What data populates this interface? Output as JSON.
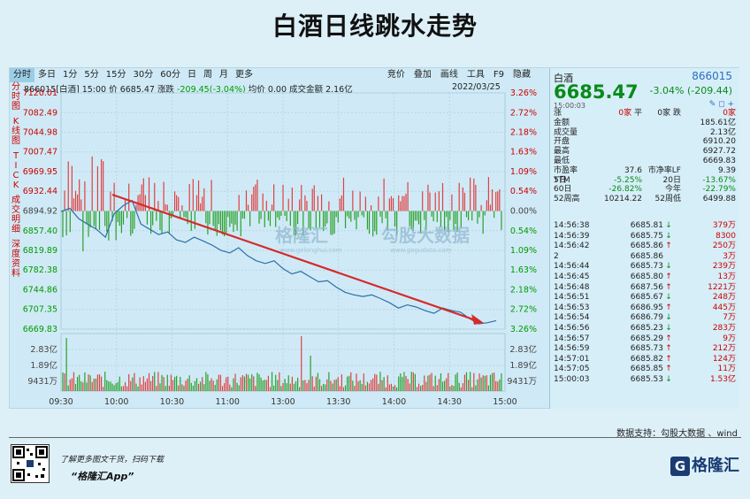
{
  "poster": {
    "title": "白酒日线跳水走势",
    "data_source": "数据支持：勾股大数据 、wind",
    "slogan": "了解更多图文干货，扫码下载",
    "app_name": "“格隆汇App”",
    "logo_text": "格隆汇"
  },
  "tabs": [
    "分时",
    "多日",
    "1分",
    "5分",
    "15分",
    "30分",
    "60分",
    "日",
    "周",
    "月",
    "更多"
  ],
  "tools": [
    "竞价",
    "叠加",
    "画线",
    "工具",
    "F9",
    "隐藏"
  ],
  "sidebar": [
    "分时图",
    "K线图",
    "TICK",
    "成交明细",
    "深度资料"
  ],
  "info": {
    "code_name": "866015[白酒]",
    "time": "15:00",
    "price_label": "价",
    "price": "6685.47",
    "chg_label": "涨跌",
    "chg": "-209.45(-3.04%)",
    "avg_label": "均价",
    "avg": "0.00",
    "amount_label": "成交金额",
    "amount": "2.16亿",
    "date": "2022/03/25"
  },
  "chart_data": {
    "type": "line",
    "base_price": 6894.92,
    "y_left_ticks": [
      "7120.01",
      "7082.49",
      "7044.98",
      "7007.47",
      "6969.95",
      "6932.44",
      "6894.92",
      "6857.40",
      "6819.89",
      "6782.38",
      "6744.86",
      "6707.35",
      "6669.83"
    ],
    "y_right_ticks": [
      "3.26%",
      "2.72%",
      "2.18%",
      "1.63%",
      "1.09%",
      "0.54%",
      "0.00%",
      "0.54%",
      "1.09%",
      "1.63%",
      "2.18%",
      "2.72%",
      "3.26%"
    ],
    "ylim": [
      6669.83,
      7120.01
    ],
    "vol_ticks": [
      "2.83亿",
      "1.89亿",
      "9431万"
    ],
    "x_ticks": [
      "09:30",
      "10:00",
      "10:30",
      "11:00",
      "13:00",
      "13:30",
      "14:00",
      "14:30",
      "15:00"
    ],
    "price_series": [
      6894,
      6900,
      6880,
      6870,
      6860,
      6845,
      6890,
      6905,
      6915,
      6870,
      6860,
      6850,
      6855,
      6840,
      6835,
      6845,
      6838,
      6830,
      6820,
      6815,
      6825,
      6810,
      6800,
      6795,
      6800,
      6785,
      6775,
      6780,
      6770,
      6760,
      6762,
      6750,
      6740,
      6735,
      6732,
      6735,
      6728,
      6720,
      6710,
      6716,
      6712,
      6705,
      6700,
      6710,
      6705,
      6702,
      6690,
      6680,
      6682,
      6686
    ]
  },
  "watermark": {
    "brand": "格隆汇",
    "brand_url": "www.gelonghui.com",
    "gogu": "勾股大数据",
    "gogu_url": "www.gogudata.com"
  },
  "quote": {
    "name": "白酒",
    "code": "866015",
    "price": "6685.47",
    "change": "-3.04% (-209.44)",
    "time": "15:00:03",
    "icons": "✎ ◻ +",
    "rows": [
      [
        "涨",
        "0家",
        "平",
        "0家",
        "跌",
        "0家"
      ],
      [
        "金额",
        "",
        "",
        "",
        "",
        "185.61亿"
      ],
      [
        "成交量",
        "",
        "",
        "",
        "",
        "2.13亿"
      ],
      [
        "开盘",
        "",
        "",
        "",
        "",
        "6910.20"
      ],
      [
        "最高",
        "",
        "",
        "",
        "",
        "6927.72"
      ],
      [
        "最低",
        "",
        "",
        "",
        "",
        "6669.83"
      ],
      [
        "市盈率TTM",
        "37.6",
        "市净率LF",
        "",
        "",
        "9.39"
      ],
      [
        "5日",
        "-5.25%",
        "20日",
        "",
        "",
        "-13.67%"
      ],
      [
        "60日",
        "-26.82%",
        "今年",
        "",
        "",
        "-22.79%"
      ],
      [
        "52周高",
        "10214.22",
        "52周低",
        "",
        "",
        "6499.88"
      ]
    ],
    "ticks": [
      [
        "14:56:38",
        "6685.81",
        "↓",
        "379万"
      ],
      [
        "14:56:39",
        "6685.75",
        "↓",
        "8300"
      ],
      [
        "14:56:42",
        "6685.86",
        "↑",
        "250万"
      ],
      [
        "2",
        "6685.86",
        "",
        "3万"
      ],
      [
        "14:56:44",
        "6685.73",
        "↓",
        "239万"
      ],
      [
        "14:56:45",
        "6685.80",
        "↑",
        "13万"
      ],
      [
        "14:56:48",
        "6687.56",
        "↑",
        "1221万"
      ],
      [
        "14:56:51",
        "6685.67",
        "↓",
        "248万"
      ],
      [
        "14:56:53",
        "6686.95",
        "↑",
        "445万"
      ],
      [
        "14:56:54",
        "6686.79",
        "↓",
        "7万"
      ],
      [
        "14:56:56",
        "6685.23",
        "↓",
        "283万"
      ],
      [
        "14:56:57",
        "6685.29",
        "↑",
        "9万"
      ],
      [
        "14:56:59",
        "6685.73",
        "↑",
        "212万"
      ],
      [
        "14:57:01",
        "6685.82",
        "↑",
        "124万"
      ],
      [
        "14:57:05",
        "6685.85",
        "↑",
        "11万"
      ],
      [
        "15:00:03",
        "6685.53",
        "↓",
        "1.53亿"
      ]
    ]
  }
}
